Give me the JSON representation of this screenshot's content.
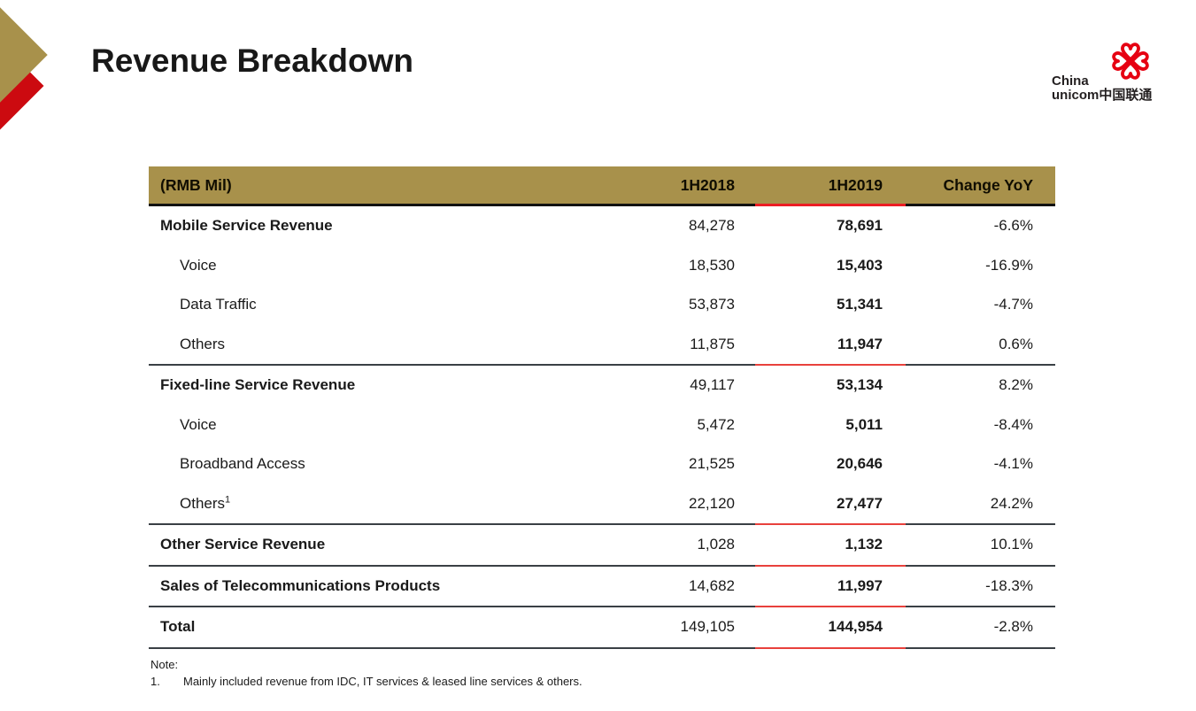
{
  "slide": {
    "title": "Revenue Breakdown"
  },
  "logo": {
    "brand_line1": "China",
    "brand_line2": "unicom",
    "brand_cn": "中国联通"
  },
  "colors": {
    "gold": "#A8914B",
    "accent_red": "#CC0A10",
    "logo_red": "#E60012",
    "rule_dark": "#3A4045",
    "rule_red": "#E8413C",
    "header_rule_black": "#121212",
    "header_rule_red": "#EC1C24"
  },
  "table": {
    "columns": [
      "(RMB Mil)",
      "1H2018",
      "1H2019",
      "Change YoY"
    ],
    "rows": [
      {
        "label": "Mobile Service Revenue",
        "bold": true,
        "indent": false,
        "v2018": "84,278",
        "v2019": "78,691",
        "yoy": "-6.6%",
        "sep_after": false
      },
      {
        "label": "Voice",
        "bold": false,
        "indent": true,
        "v2018": "18,530",
        "v2019": "15,403",
        "yoy": "-16.9%",
        "sep_after": false
      },
      {
        "label": "Data Traffic",
        "bold": false,
        "indent": true,
        "v2018": "53,873",
        "v2019": "51,341",
        "yoy": "-4.7%",
        "sep_after": false
      },
      {
        "label": "Others",
        "bold": false,
        "indent": true,
        "v2018": "11,875",
        "v2019": "11,947",
        "yoy": "0.6%",
        "sep_after": true
      },
      {
        "label": "Fixed-line Service Revenue",
        "bold": true,
        "indent": false,
        "v2018": "49,117",
        "v2019": "53,134",
        "yoy": "8.2%",
        "sep_after": false
      },
      {
        "label": "Voice",
        "bold": false,
        "indent": true,
        "v2018": "5,472",
        "v2019": "5,011",
        "yoy": "-8.4%",
        "sep_after": false
      },
      {
        "label": "Broadband Access",
        "bold": false,
        "indent": true,
        "v2018": "21,525",
        "v2019": "20,646",
        "yoy": "-4.1%",
        "sep_after": false
      },
      {
        "label": "Others",
        "sup": "1",
        "bold": false,
        "indent": true,
        "v2018": "22,120",
        "v2019": "27,477",
        "yoy": "24.2%",
        "sep_after": true
      },
      {
        "label": "Other Service Revenue",
        "bold": true,
        "indent": false,
        "v2018": "1,028",
        "v2019": "1,132",
        "yoy": "10.1%",
        "sep_after": true
      },
      {
        "label": "Sales of Telecommunications Products",
        "bold": true,
        "indent": false,
        "v2018": "14,682",
        "v2019": "11,997",
        "yoy": "-18.3%",
        "sep_after": true
      },
      {
        "label": "Total",
        "bold": true,
        "indent": false,
        "v2018": "149,105",
        "v2019": "144,954",
        "yoy": "-2.8%",
        "sep_after": true
      }
    ]
  },
  "note": {
    "label": "Note:",
    "items": [
      {
        "num": "1.",
        "text": "Mainly included revenue from IDC, IT services & leased line services & others."
      }
    ]
  }
}
